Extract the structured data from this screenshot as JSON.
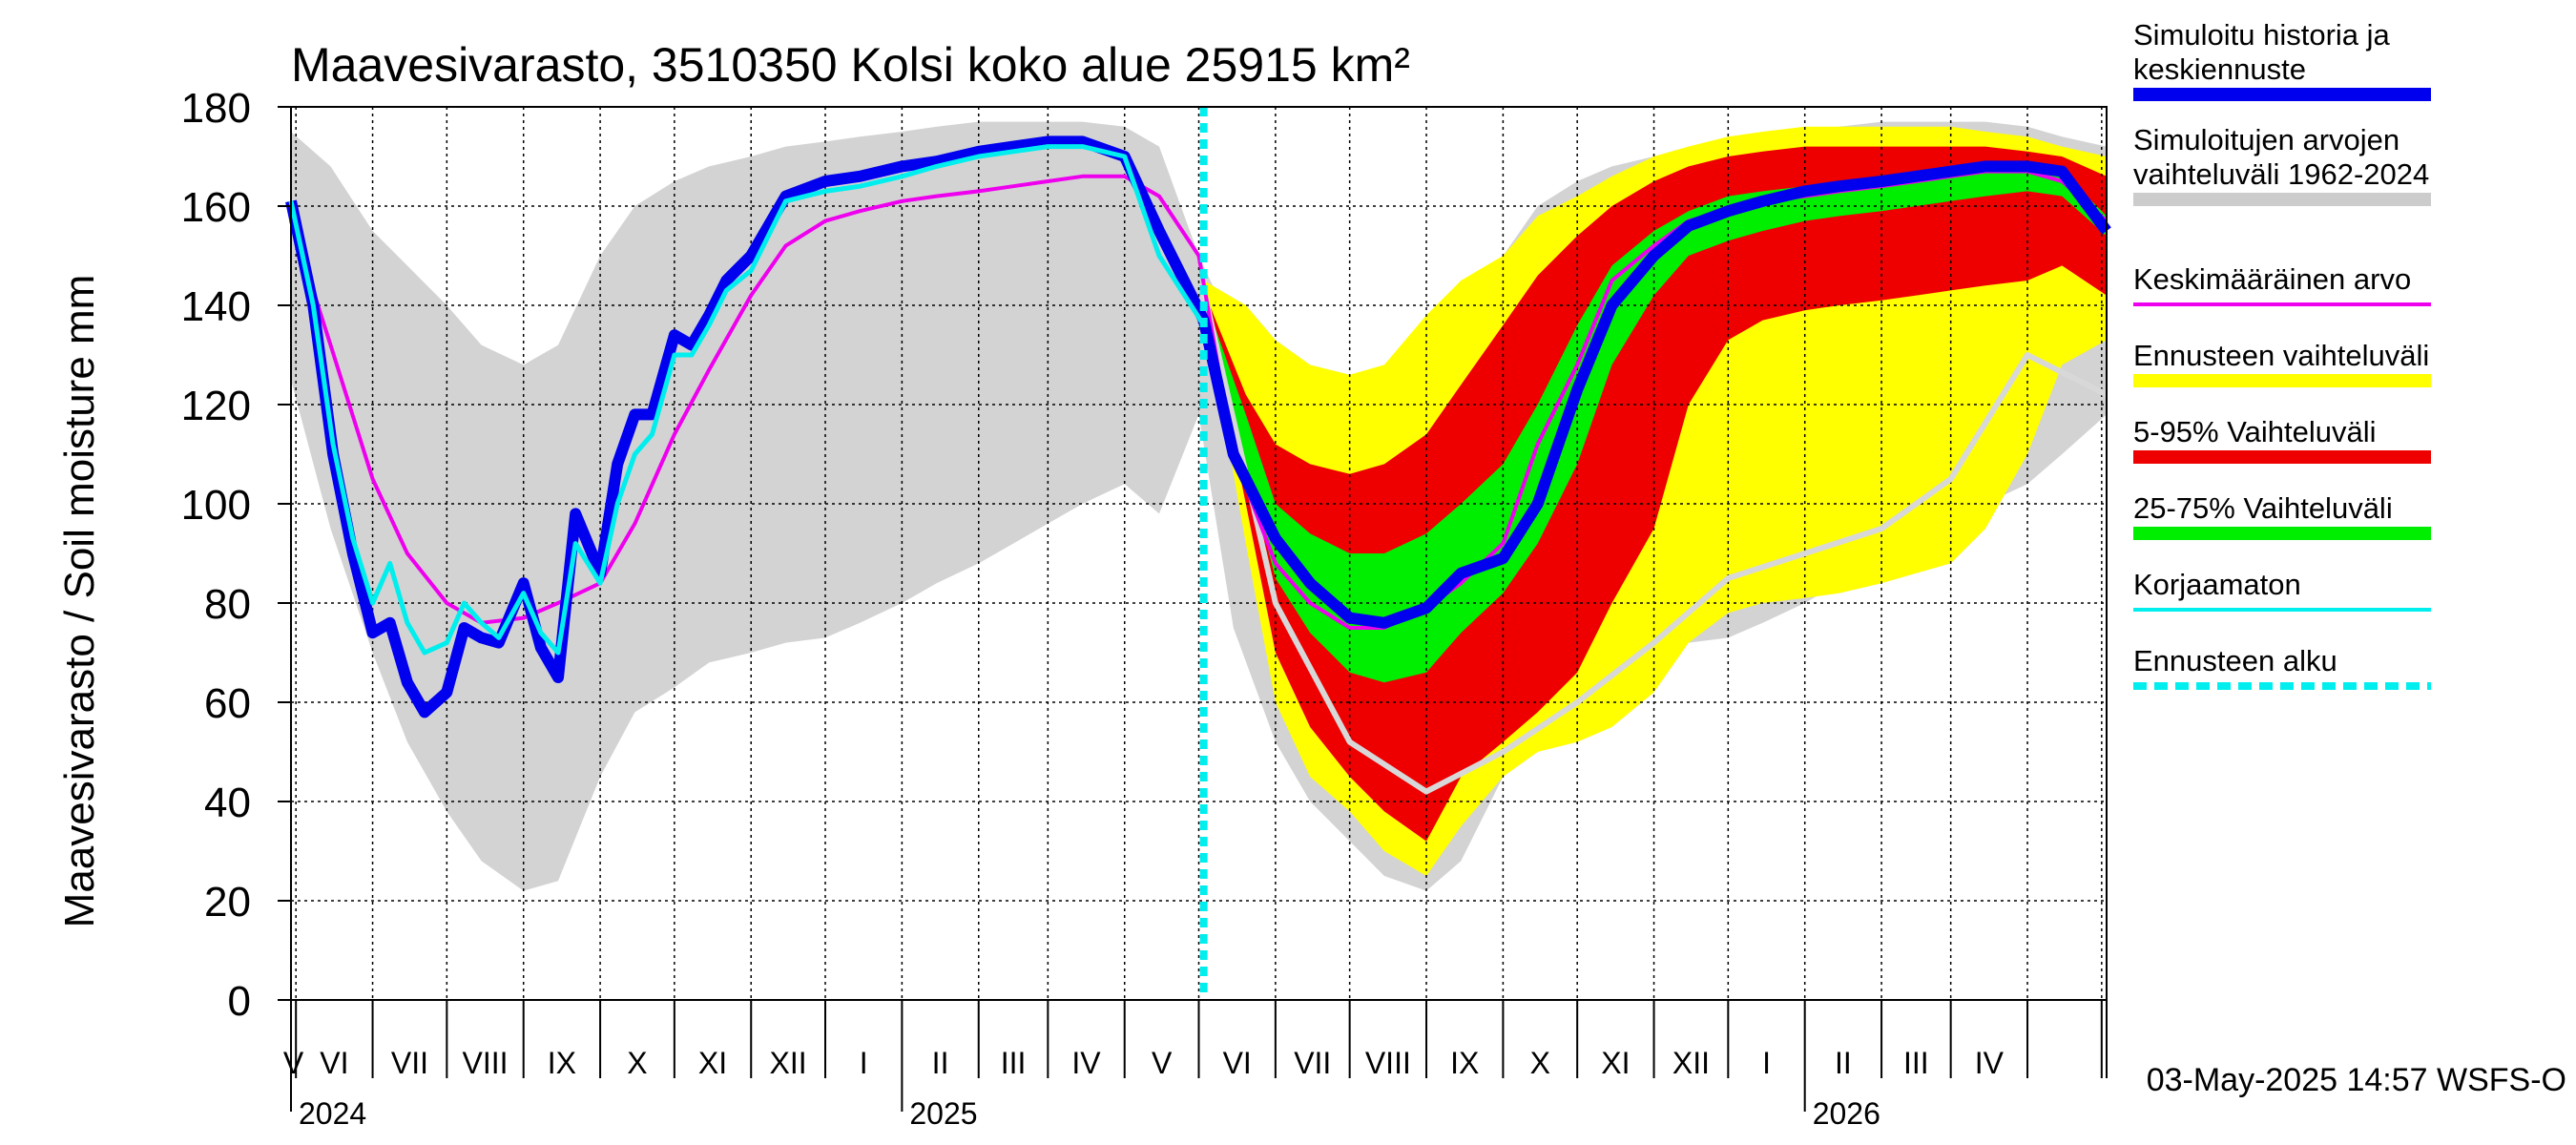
{
  "chart_data": {
    "type": "area",
    "title": "Maavesivarasto, 3510350 Kolsi koko alue 25915 km²",
    "ylabel": "Maavesivarasto / Soil moisture   mm",
    "ylim": [
      0,
      180
    ],
    "yticks": [
      "0",
      "20",
      "40",
      "60",
      "80",
      "100",
      "120",
      "140",
      "160",
      "180"
    ],
    "x_range": [
      "2024-04-29",
      "2026-05-03"
    ],
    "forecast_start": "2025-05-03",
    "month_labels": [
      "V",
      "VI",
      "VII",
      "VIII",
      "IX",
      "X",
      "XI",
      "XII",
      "I",
      "II",
      "III",
      "IV",
      "V",
      "VI",
      "VII",
      "VIII",
      "IX",
      "X",
      "XI",
      "XII",
      "I",
      "II",
      "III",
      "IV"
    ],
    "year_labels": [
      "2024",
      "2025",
      "2026"
    ],
    "grid": true,
    "legend_position": "right",
    "legend": [
      {
        "label": "Simuloitu historia ja keskiennuste",
        "color": "#0000ee"
      },
      {
        "label": "Simuloitujen arvojen vaihteluväli 1962-2024",
        "color": "#cccccc"
      },
      {
        "label": "Keskimääräinen arvo",
        "color": "#ee00ee"
      },
      {
        "label": "Ennusteen vaihteluväli",
        "color": "#ffff00"
      },
      {
        "label": "5-95% Vaihteluväli",
        "color": "#ee0000"
      },
      {
        "label": "25-75% Vaihteluväli",
        "color": "#00ee00"
      },
      {
        "label": "Korjaamaton",
        "color": "#00eeee"
      },
      {
        "label": "Ennusteen alku",
        "color": "#00eeee"
      }
    ],
    "footer": "03-May-2025 14:57 WSFS-O",
    "series": {
      "hist_range": {
        "name": "Simuloitujen arvojen vaihteluväli 1962-2024",
        "x": [
          "2024-04-29",
          "2024-05-15",
          "2024-06-01",
          "2024-06-15",
          "2024-07-01",
          "2024-07-15",
          "2024-08-01",
          "2024-08-15",
          "2024-09-01",
          "2024-09-15",
          "2024-10-01",
          "2024-10-15",
          "2024-11-01",
          "2024-11-15",
          "2024-12-01",
          "2024-12-15",
          "2025-01-01",
          "2025-01-15",
          "2025-02-01",
          "2025-02-15",
          "2025-03-01",
          "2025-03-15",
          "2025-04-01",
          "2025-04-15",
          "2025-05-01",
          "2025-05-15",
          "2025-06-01",
          "2025-06-15",
          "2025-07-01",
          "2025-07-15",
          "2025-08-01",
          "2025-08-15",
          "2025-09-01",
          "2025-09-15",
          "2025-10-01",
          "2025-10-15",
          "2025-11-01",
          "2025-11-15",
          "2025-12-01",
          "2025-12-15",
          "2026-01-01",
          "2026-01-15",
          "2026-02-01",
          "2026-02-15",
          "2026-03-01",
          "2026-03-15",
          "2026-04-01",
          "2026-04-15",
          "2026-05-03"
        ],
        "low": [
          125,
          95,
          70,
          52,
          38,
          28,
          22,
          24,
          45,
          58,
          63,
          68,
          70,
          72,
          73,
          76,
          80,
          84,
          88,
          92,
          96,
          100,
          104,
          98,
          118,
          75,
          52,
          40,
          32,
          25,
          22,
          28,
          45,
          58,
          63,
          68,
          70,
          72,
          73,
          76,
          80,
          84,
          88,
          92,
          96,
          100,
          104,
          110,
          118
        ],
        "high": [
          175,
          168,
          155,
          148,
          140,
          132,
          128,
          132,
          150,
          160,
          165,
          168,
          170,
          172,
          173,
          174,
          175,
          176,
          177,
          177,
          177,
          177,
          176,
          172,
          150,
          135,
          122,
          118,
          116,
          120,
          128,
          140,
          150,
          160,
          165,
          168,
          170,
          172,
          173,
          174,
          175,
          176,
          177,
          177,
          177,
          177,
          176,
          174,
          172
        ]
      },
      "mean": {
        "name": "Keskimääräinen arvo",
        "x": [
          "2024-04-29",
          "2024-05-15",
          "2024-06-01",
          "2024-06-15",
          "2024-07-01",
          "2024-07-15",
          "2024-08-01",
          "2024-08-15",
          "2024-09-01",
          "2024-09-15",
          "2024-10-01",
          "2024-10-15",
          "2024-11-01",
          "2024-11-15",
          "2024-12-01",
          "2024-12-15",
          "2025-01-01",
          "2025-01-15",
          "2025-02-01",
          "2025-02-15",
          "2025-03-01",
          "2025-03-15",
          "2025-04-01",
          "2025-04-15",
          "2025-05-01",
          "2025-05-15",
          "2025-06-01",
          "2025-06-15",
          "2025-07-01",
          "2025-07-15",
          "2025-08-01",
          "2025-08-15",
          "2025-09-01",
          "2025-09-15",
          "2025-10-01",
          "2025-10-15",
          "2025-11-01",
          "2025-11-15",
          "2025-12-01",
          "2025-12-15",
          "2026-01-01",
          "2026-01-15",
          "2026-02-01",
          "2026-02-15",
          "2026-03-01",
          "2026-03-15",
          "2026-04-01",
          "2026-04-15",
          "2026-05-03"
        ],
        "values": [
          157,
          132,
          105,
          90,
          80,
          76,
          77,
          80,
          84,
          96,
          114,
          127,
          142,
          152,
          157,
          159,
          161,
          162,
          163,
          164,
          165,
          166,
          166,
          162,
          150,
          110,
          88,
          80,
          75,
          75,
          79,
          84,
          92,
          112,
          128,
          145,
          152,
          157,
          159,
          161,
          162,
          163,
          164,
          165,
          166,
          167,
          167,
          165,
          157
        ]
      },
      "forecast_yellow": {
        "name": "Ennusteen vaihteluväli",
        "x": [
          "2025-05-03",
          "2025-05-20",
          "2025-06-01",
          "2025-06-15",
          "2025-07-01",
          "2025-07-15",
          "2025-08-01",
          "2025-08-15",
          "2025-09-01",
          "2025-09-15",
          "2025-10-01",
          "2025-10-15",
          "2025-11-01",
          "2025-11-15",
          "2025-12-01",
          "2025-12-15",
          "2026-01-01",
          "2026-01-15",
          "2026-02-01",
          "2026-02-15",
          "2026-03-01",
          "2026-03-15",
          "2026-04-01",
          "2026-04-15",
          "2026-05-03"
        ],
        "low": [
          140,
          92,
          60,
          45,
          38,
          30,
          25,
          35,
          45,
          50,
          52,
          55,
          62,
          72,
          78,
          80,
          81,
          82,
          84,
          86,
          88,
          95,
          110,
          128,
          133
        ],
        "high": [
          145,
          140,
          133,
          128,
          126,
          128,
          138,
          145,
          150,
          158,
          162,
          166,
          170,
          172,
          174,
          175,
          176,
          176,
          176,
          176,
          176,
          175,
          174,
          172,
          170
        ]
      },
      "forecast_red": {
        "name": "5-95% Vaihteluväli",
        "x": [
          "2025-05-03",
          "2025-05-20",
          "2025-06-01",
          "2025-06-15",
          "2025-07-01",
          "2025-07-15",
          "2025-08-01",
          "2025-08-15",
          "2025-09-01",
          "2025-09-15",
          "2025-10-01",
          "2025-10-15",
          "2025-11-01",
          "2025-11-15",
          "2025-12-01",
          "2025-12-15",
          "2026-01-01",
          "2026-01-15",
          "2026-02-01",
          "2026-02-15",
          "2026-03-01",
          "2026-03-15",
          "2026-04-01",
          "2026-04-15",
          "2026-05-03"
        ],
        "low": [
          141,
          100,
          70,
          55,
          45,
          38,
          32,
          45,
          52,
          58,
          66,
          80,
          95,
          120,
          133,
          137,
          139,
          140,
          141,
          142,
          143,
          144,
          145,
          148,
          142
        ],
        "high": [
          143,
          122,
          112,
          108,
          106,
          108,
          114,
          124,
          136,
          146,
          154,
          160,
          165,
          168,
          170,
          171,
          172,
          172,
          172,
          172,
          172,
          172,
          171,
          170,
          166
        ]
      },
      "forecast_green": {
        "name": "25-75% Vaihteluväli",
        "x": [
          "2025-05-03",
          "2025-05-20",
          "2025-06-01",
          "2025-06-15",
          "2025-07-01",
          "2025-07-15",
          "2025-08-01",
          "2025-08-15",
          "2025-09-01",
          "2025-09-15",
          "2025-10-01",
          "2025-10-15",
          "2025-11-01",
          "2025-11-15",
          "2025-12-01",
          "2025-12-15",
          "2026-01-01",
          "2026-01-15",
          "2026-02-01",
          "2026-02-15",
          "2026-03-01",
          "2026-03-15",
          "2026-04-01",
          "2026-04-15",
          "2026-05-03"
        ],
        "low": [
          142,
          108,
          85,
          74,
          66,
          64,
          66,
          74,
          82,
          92,
          108,
          128,
          142,
          150,
          153,
          155,
          157,
          158,
          159,
          160,
          161,
          162,
          163,
          162,
          154
        ],
        "high": [
          142,
          118,
          100,
          94,
          90,
          90,
          94,
          100,
          108,
          120,
          136,
          148,
          155,
          159,
          162,
          163,
          164,
          165,
          166,
          167,
          168,
          168,
          168,
          167,
          158
        ]
      },
      "simulated": {
        "name": "Simuloitu historia ja keskiennuste",
        "x": [
          "2024-04-29",
          "2024-05-08",
          "2024-05-16",
          "2024-05-24",
          "2024-06-01",
          "2024-06-08",
          "2024-06-15",
          "2024-06-22",
          "2024-07-01",
          "2024-07-08",
          "2024-07-15",
          "2024-07-22",
          "2024-08-01",
          "2024-08-08",
          "2024-08-15",
          "2024-08-22",
          "2024-09-01",
          "2024-09-08",
          "2024-09-15",
          "2024-09-22",
          "2024-10-01",
          "2024-10-08",
          "2024-10-15",
          "2024-10-22",
          "2024-11-01",
          "2024-11-15",
          "2024-12-01",
          "2024-12-15",
          "2025-01-01",
          "2025-01-15",
          "2025-02-01",
          "2025-02-15",
          "2025-03-01",
          "2025-03-15",
          "2025-04-01",
          "2025-04-15",
          "2025-05-03",
          "2025-05-15",
          "2025-06-01",
          "2025-06-15",
          "2025-07-01",
          "2025-07-15",
          "2025-08-01",
          "2025-08-15",
          "2025-09-01",
          "2025-09-15",
          "2025-10-01",
          "2025-10-15",
          "2025-11-01",
          "2025-11-15",
          "2025-12-01",
          "2025-12-15",
          "2026-01-01",
          "2026-01-15",
          "2026-02-01",
          "2026-02-15",
          "2026-03-01",
          "2026-03-15",
          "2026-04-01",
          "2026-04-15",
          "2026-05-03"
        ],
        "values": [
          161,
          140,
          110,
          90,
          74,
          76,
          64,
          58,
          62,
          75,
          73,
          72,
          84,
          71,
          65,
          98,
          86,
          108,
          118,
          118,
          134,
          132,
          138,
          145,
          150,
          162,
          165,
          166,
          168,
          169,
          171,
          172,
          173,
          173,
          170,
          155,
          137,
          110,
          93,
          84,
          77,
          76,
          79,
          86,
          89,
          100,
          123,
          140,
          150,
          156,
          159,
          161,
          163,
          164,
          165,
          166,
          167,
          168,
          168,
          167,
          155
        ]
      },
      "uncorrected": {
        "name": "Korjaamaton",
        "x": [
          "2024-04-29",
          "2024-05-08",
          "2024-05-16",
          "2024-05-24",
          "2024-06-01",
          "2024-06-08",
          "2024-06-15",
          "2024-06-22",
          "2024-07-01",
          "2024-07-08",
          "2024-07-15",
          "2024-07-22",
          "2024-08-01",
          "2024-08-08",
          "2024-08-15",
          "2024-08-22",
          "2024-09-01",
          "2024-09-08",
          "2024-09-15",
          "2024-09-22",
          "2024-10-01",
          "2024-10-08",
          "2024-10-15",
          "2024-10-22",
          "2024-11-01",
          "2024-11-15",
          "2024-12-01",
          "2024-12-15",
          "2025-01-01",
          "2025-01-15",
          "2025-02-01",
          "2025-02-15",
          "2025-03-01",
          "2025-03-15",
          "2025-04-01",
          "2025-04-15",
          "2025-05-03"
        ],
        "values": [
          161,
          140,
          112,
          93,
          80,
          88,
          76,
          70,
          72,
          80,
          76,
          73,
          82,
          74,
          70,
          92,
          84,
          100,
          110,
          114,
          130,
          130,
          136,
          143,
          147,
          161,
          163,
          164,
          166,
          168,
          170,
          171,
          172,
          172,
          170,
          150,
          136
        ]
      },
      "hist_scenario": {
        "name": "",
        "x": [
          "2025-05-03",
          "2025-06-01",
          "2025-07-01",
          "2025-08-01",
          "2025-09-01",
          "2025-10-01",
          "2025-11-01",
          "2025-12-01",
          "2026-01-01",
          "2026-02-01",
          "2026-03-01",
          "2026-04-01",
          "2026-05-03"
        ],
        "values": [
          143,
          80,
          52,
          42,
          50,
          60,
          72,
          85,
          90,
          95,
          105,
          130,
          122
        ]
      }
    }
  }
}
